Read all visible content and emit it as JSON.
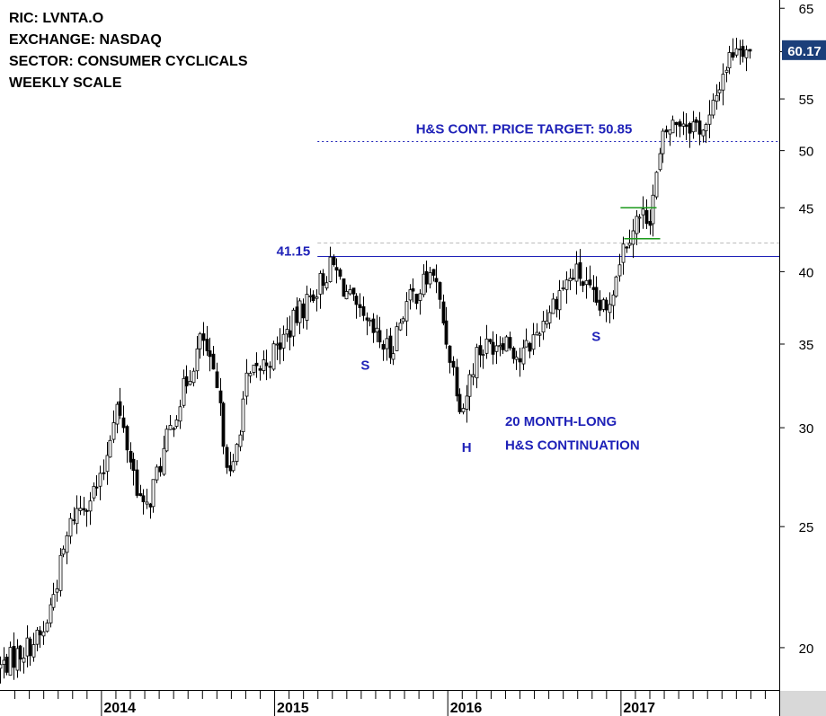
{
  "header": {
    "ric": "RIC: LVNTA.O",
    "exchange": "EXCHANGE: NASDAQ",
    "sector": "SECTOR: CONSUMER CYCLICALS",
    "scale": "WEEKLY SCALE"
  },
  "chart_data": {
    "type": "candlestick",
    "title": "",
    "scale": "log",
    "ylim": [
      18.5,
      66
    ],
    "y_ticks": [
      20,
      25,
      30,
      35,
      40,
      45,
      50,
      55,
      60,
      65
    ],
    "x_range": [
      "2013-06",
      "2017-12"
    ],
    "x_ticks": [
      {
        "label": "2014",
        "date": "2014-01"
      },
      {
        "label": "2015",
        "date": "2015-01"
      },
      {
        "label": "2016",
        "date": "2016-01"
      },
      {
        "label": "2017",
        "date": "2017-01"
      }
    ],
    "last_price": "60.17",
    "price_path": [
      [
        "2013-06",
        19.3
      ],
      [
        "2013-09",
        20.5
      ],
      [
        "2013-11",
        25.5
      ],
      [
        "2014-01",
        27.1
      ],
      [
        "2014-02",
        31.5
      ],
      [
        "2014-04",
        25.5
      ],
      [
        "2014-06",
        30.5
      ],
      [
        "2014-08",
        35.5
      ],
      [
        "2014-09",
        32.0
      ],
      [
        "2014-10",
        27.0
      ],
      [
        "2014-11",
        32.5
      ],
      [
        "2015-01",
        34.5
      ],
      [
        "2015-03",
        37.5
      ],
      [
        "2015-05",
        40.5
      ],
      [
        "2015-07",
        36.5
      ],
      [
        "2015-09",
        34.5
      ],
      [
        "2015-10",
        37.5
      ],
      [
        "2015-12",
        40.0
      ],
      [
        "2016-01",
        35.0
      ],
      [
        "2016-02",
        31.0
      ],
      [
        "2016-03",
        34.5
      ],
      [
        "2016-05",
        35.5
      ],
      [
        "2016-06",
        34.0
      ],
      [
        "2016-07",
        35.5
      ],
      [
        "2016-09",
        39.0
      ],
      [
        "2016-10",
        40.0
      ],
      [
        "2016-11",
        38.0
      ],
      [
        "2016-12",
        37.0
      ],
      [
        "2017-01",
        41.5
      ],
      [
        "2017-02",
        44.0
      ],
      [
        "2017-03",
        44.5
      ],
      [
        "2017-04",
        51.5
      ],
      [
        "2017-05",
        53.0
      ],
      [
        "2017-06",
        52.5
      ],
      [
        "2017-07",
        52.0
      ],
      [
        "2017-08",
        57.5
      ],
      [
        "2017-09",
        61.0
      ],
      [
        "2017-10",
        60.2
      ]
    ],
    "levels": [
      {
        "name": "neckline",
        "value": 41.15,
        "label": "41.15",
        "from": "2015-04",
        "style": "solid",
        "color": "#1f22b8"
      },
      {
        "name": "price-target",
        "value": 50.85,
        "label": "H&S CONT. PRICE TARGET: 50.85",
        "from": "2015-04",
        "style": "dotted",
        "color": "#1f22b8"
      },
      {
        "name": "reference",
        "value": 42.2,
        "label": "",
        "from": "2015-04",
        "style": "dashed",
        "color": "#bbbbbb"
      }
    ],
    "flag": {
      "top": 45.0,
      "bottom": 42.5,
      "from": "2017-01",
      "to": "2017-03",
      "color": "#1a9a1a"
    },
    "annotations": [
      {
        "text": "S",
        "date": "2015-07",
        "value": 33.4
      },
      {
        "text": "H",
        "date": "2016-02",
        "value": 28.7
      },
      {
        "text": "S",
        "date": "2016-11",
        "value": 35.2
      },
      {
        "text": "20 MONTH-LONG",
        "date": "2016-05",
        "value": 30.1
      },
      {
        "text": "H&S CONTINUATION",
        "date": "2016-05",
        "value": 28.8
      }
    ],
    "colors": {
      "up": "#ffffff",
      "down": "#000000",
      "annotation": "#1f22b8",
      "price_box": "#1b3f7a"
    }
  }
}
